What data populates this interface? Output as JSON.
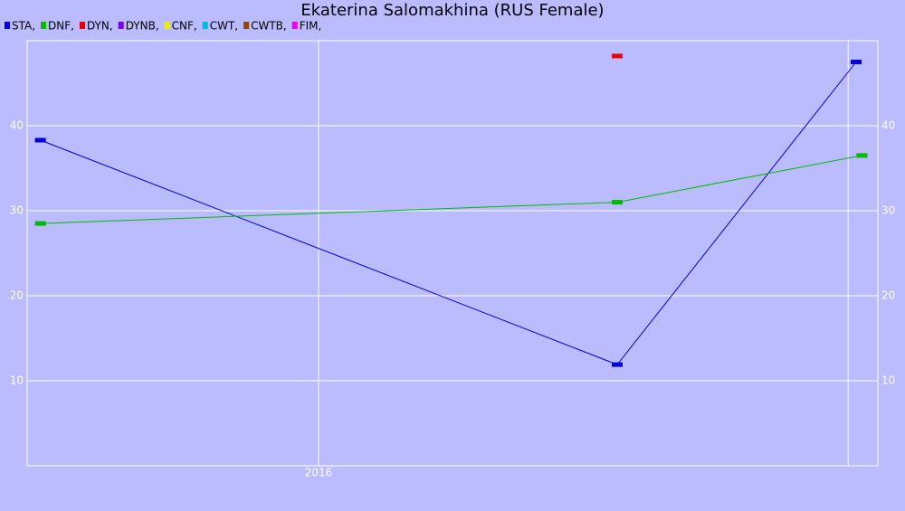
{
  "chart_data": {
    "type": "line",
    "title": "Ekaterina Salomakhina (RUS Female)",
    "xlim": [
      2015.45,
      2017.056
    ],
    "xticks": [
      2016,
      {
        "value": 2017,
        "label": null
      }
    ],
    "ylim": [
      0,
      50
    ],
    "yticks": [
      10,
      20,
      30,
      40
    ],
    "grid": true,
    "legend": "top-left",
    "series": [
      {
        "name": "STA,",
        "color": "#0000dd",
        "x": [
          2015.475,
          2016.564,
          2017.015
        ],
        "values": [
          38.3,
          11.9,
          47.5
        ]
      },
      {
        "name": "DNF,",
        "color": "#00bb00",
        "x": [
          2015.475,
          2016.564,
          2017.026
        ],
        "values": [
          28.5,
          31,
          36.5
        ]
      },
      {
        "name": "DYN,",
        "color": "#ee0000",
        "x": [
          2016.564
        ],
        "values": [
          48.2
        ]
      },
      {
        "name": "DYNB,",
        "color": "#7f00ee",
        "x": [],
        "values": []
      },
      {
        "name": "CNF,",
        "color": "#eeee00",
        "x": [],
        "values": []
      },
      {
        "name": "CWT,",
        "color": "#00bbdd",
        "x": [],
        "values": []
      },
      {
        "name": "CWTB,",
        "color": "#994400",
        "x": [],
        "values": []
      },
      {
        "name": "FIM,",
        "color": "#ee00ee",
        "x": [],
        "values": []
      }
    ]
  }
}
